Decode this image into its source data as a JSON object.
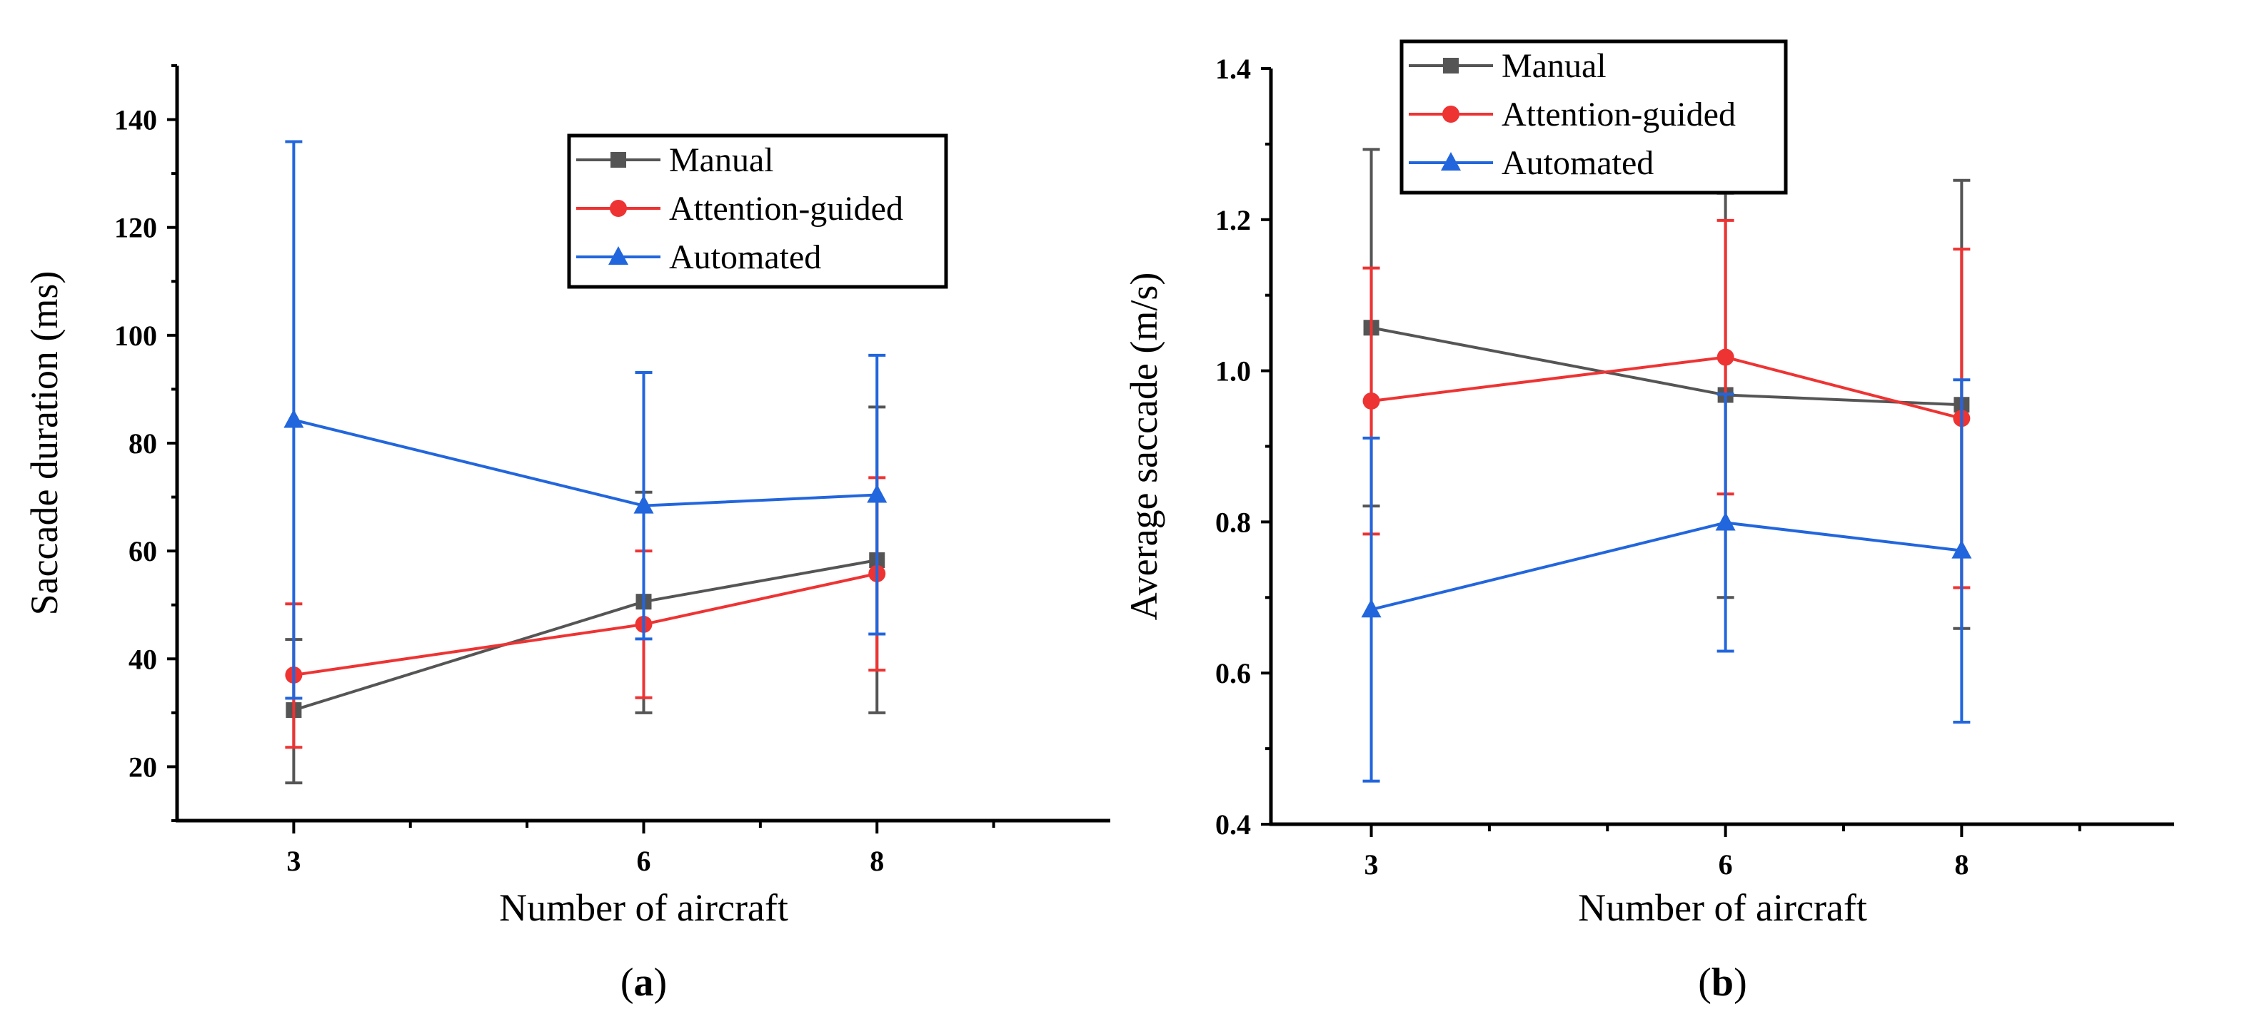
{
  "chart_data": [
    {
      "type": "line",
      "panel_label": "a",
      "xlabel": "Number of aircraft",
      "ylabel": "Saccade duration (ms)",
      "x": [
        3,
        6,
        8
      ],
      "x_ticks": [
        "3",
        "6",
        "8"
      ],
      "xlim": [
        2.0,
        10.0
      ],
      "ylim": [
        10,
        150
      ],
      "y_ticks": [
        20,
        40,
        60,
        80,
        100,
        120,
        140
      ],
      "legend_position": "top-right",
      "series": [
        {
          "name": "Manual",
          "color": "#555555",
          "marker": "square",
          "values": [
            30.5,
            50.6,
            58.3
          ],
          "err_low": [
            17.0,
            30.0,
            30.0
          ],
          "err_high": [
            43.6,
            70.9,
            86.7
          ]
        },
        {
          "name": "Attention-guided",
          "color": "#ee3333",
          "marker": "circle",
          "values": [
            37.0,
            46.4,
            55.8
          ],
          "err_low": [
            23.6,
            32.8,
            37.9
          ],
          "err_high": [
            50.2,
            60.0,
            73.6
          ]
        },
        {
          "name": "Automated",
          "color": "#2266dd",
          "marker": "triangle",
          "values": [
            84.3,
            68.4,
            70.4
          ],
          "err_low": [
            32.7,
            43.7,
            44.6
          ],
          "err_high": [
            135.9,
            93.1,
            96.3
          ]
        }
      ]
    },
    {
      "type": "line",
      "panel_label": "b",
      "xlabel": "Number of aircraft",
      "ylabel": "Average saccade (m/s)",
      "x": [
        3,
        6,
        8
      ],
      "x_ticks": [
        "3",
        "6",
        "8"
      ],
      "xlim": [
        2.15,
        9.8
      ],
      "ylim": [
        0.4,
        1.4
      ],
      "y_ticks": [
        0.4,
        0.6,
        0.8,
        1.0,
        1.2,
        1.4
      ],
      "legend_position": "top-left",
      "series": [
        {
          "name": "Manual",
          "color": "#555555",
          "marker": "square",
          "values": [
            1.057,
            0.968,
            0.955
          ],
          "err_low": [
            0.821,
            0.7,
            0.659
          ],
          "err_high": [
            1.293,
            1.235,
            1.252
          ]
        },
        {
          "name": "Attention-guided",
          "color": "#ee3333",
          "marker": "circle",
          "values": [
            0.96,
            1.018,
            0.937
          ],
          "err_low": [
            0.784,
            0.837,
            0.713
          ],
          "err_high": [
            1.136,
            1.199,
            1.161
          ]
        },
        {
          "name": "Automated",
          "color": "#2266dd",
          "marker": "triangle",
          "values": [
            0.684,
            0.799,
            0.762
          ],
          "err_low": [
            0.457,
            0.629,
            0.535
          ],
          "err_high": [
            0.911,
            0.969,
            0.988
          ]
        }
      ]
    }
  ]
}
